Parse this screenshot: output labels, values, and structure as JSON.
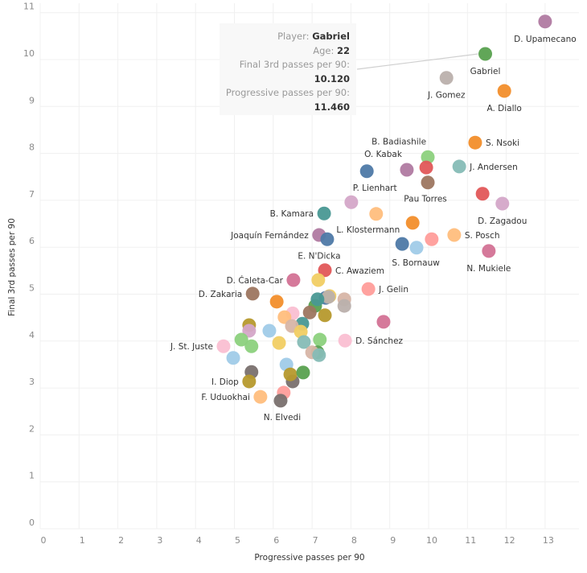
{
  "chart_data": {
    "type": "scatter",
    "title": "",
    "xlabel": "Progressive passes per 90",
    "ylabel": "Final 3rd passes per 90",
    "xlim": [
      0,
      13.9
    ],
    "ylim": [
      0,
      11.2
    ],
    "xticks": [
      0,
      1,
      2,
      3,
      4,
      5,
      6,
      7,
      8,
      9,
      10,
      11,
      12,
      13
    ],
    "yticks": [
      0,
      1,
      2,
      3,
      4,
      5,
      6,
      7,
      8,
      9,
      10,
      11
    ],
    "grid": true,
    "points": [
      {
        "name": "D. Upamecano",
        "x": 13.0,
        "y": 10.81,
        "color": "#b07aa1",
        "label": "D. Upamecano",
        "label_pos": "below"
      },
      {
        "name": "Gabriel",
        "x": 11.46,
        "y": 10.12,
        "color": "#59a14f",
        "label": "Gabriel",
        "label_pos": "below"
      },
      {
        "name": "J. Gomez",
        "x": 10.46,
        "y": 9.61,
        "color": "#bab0ac",
        "label": "J. Gomez",
        "label_pos": "below"
      },
      {
        "name": "A. Diallo",
        "x": 11.95,
        "y": 9.33,
        "color": "#f28e2b",
        "label": "A. Diallo",
        "label_pos": "below"
      },
      {
        "name": "S. Nsoki",
        "x": 11.2,
        "y": 8.23,
        "color": "#f28e2b",
        "label": "S. Nsoki",
        "label_pos": "right"
      },
      {
        "name": "B. Badiashile",
        "x": 9.98,
        "y": 7.92,
        "color": "#8cd17d",
        "label": "B. Badiashile",
        "label_pos": "above-left"
      },
      {
        "name": "",
        "x": 9.94,
        "y": 7.7,
        "color": "#e15759",
        "label": "",
        "label_pos": ""
      },
      {
        "name": "O. Kabak",
        "x": 9.44,
        "y": 7.65,
        "color": "#b07aa1",
        "label": "O. Kabak",
        "label_pos": "above-left"
      },
      {
        "name": "P. Lienhart",
        "x": 8.41,
        "y": 7.62,
        "color": "#4e79a7",
        "label": "P. Lienhart",
        "label_pos": "below-right"
      },
      {
        "name": "J. Andersen",
        "x": 10.79,
        "y": 7.72,
        "color": "#86bcb6",
        "label": "J. Andersen",
        "label_pos": "right"
      },
      {
        "name": "Pau Torres",
        "x": 9.98,
        "y": 7.38,
        "color": "#9d7660",
        "label": "Pau Torres",
        "label_pos": "below"
      },
      {
        "name": "",
        "x": 11.39,
        "y": 7.14,
        "color": "#e15759",
        "label": "",
        "label_pos": ""
      },
      {
        "name": "D. Zagadou",
        "x": 11.9,
        "y": 6.93,
        "color": "#d4a6c8",
        "label": "D. Zagadou",
        "label_pos": "below"
      },
      {
        "name": "",
        "x": 8.01,
        "y": 6.96,
        "color": "#d4a6c8",
        "label": "",
        "label_pos": ""
      },
      {
        "name": "L. Klostermann",
        "x": 8.65,
        "y": 6.71,
        "color": "#ffbe7d",
        "label": "L. Klostermann",
        "label_pos": "below"
      },
      {
        "name": "B. Kamara",
        "x": 7.31,
        "y": 6.72,
        "color": "#499894",
        "label": "B. Kamara",
        "label_pos": "left"
      },
      {
        "name": "",
        "x": 9.59,
        "y": 6.52,
        "color": "#f28e2b",
        "label": "",
        "label_pos": ""
      },
      {
        "name": "Joaquín Fernández",
        "x": 7.18,
        "y": 6.26,
        "color": "#b07aa1",
        "label": "Joaquín Fernández",
        "label_pos": "left"
      },
      {
        "name": "E. N'Dicka",
        "x": 7.39,
        "y": 6.17,
        "color": "#4e79a7",
        "label": "E. N'Dicka",
        "label_pos": "below"
      },
      {
        "name": "S. Bornauw",
        "x": 9.32,
        "y": 6.07,
        "color": "#4e79a7",
        "label": "S. Bornauw",
        "label_pos": "below-right"
      },
      {
        "name": "",
        "x": 9.69,
        "y": 5.99,
        "color": "#a0cbe8",
        "label": "",
        "label_pos": ""
      },
      {
        "name": "",
        "x": 10.08,
        "y": 6.17,
        "color": "#ff9d9a",
        "label": "",
        "label_pos": ""
      },
      {
        "name": "S. Posch",
        "x": 10.66,
        "y": 6.26,
        "color": "#ffbe7d",
        "label": "S. Posch",
        "label_pos": "right"
      },
      {
        "name": "N. Mukiele",
        "x": 11.55,
        "y": 5.92,
        "color": "#d37295",
        "label": "N. Mukiele",
        "label_pos": "below"
      },
      {
        "name": "C. Awaziem",
        "x": 7.33,
        "y": 5.51,
        "color": "#e15759",
        "label": "C. Awaziem",
        "label_pos": "right"
      },
      {
        "name": "",
        "x": 7.16,
        "y": 5.3,
        "color": "#f1ce63",
        "label": "",
        "label_pos": ""
      },
      {
        "name": "D. Ćaleta-Car",
        "x": 6.52,
        "y": 5.3,
        "color": "#d37295",
        "label": "D. Ćaleta-Car",
        "label_pos": "left"
      },
      {
        "name": "D. Zakaria",
        "x": 5.47,
        "y": 5.01,
        "color": "#9d7660",
        "label": "D. Zakaria",
        "label_pos": "left"
      },
      {
        "name": "J. Gelin",
        "x": 8.45,
        "y": 5.11,
        "color": "#ff9d9a",
        "label": "J. Gelin",
        "label_pos": "right"
      },
      {
        "name": "",
        "x": 6.09,
        "y": 4.84,
        "color": "#f28e2b",
        "label": "",
        "label_pos": ""
      },
      {
        "name": "",
        "x": 7.35,
        "y": 4.92,
        "color": "#4e79a7",
        "label": "",
        "label_pos": ""
      },
      {
        "name": "",
        "x": 7.45,
        "y": 4.96,
        "color": "#f1ce63",
        "label": "",
        "label_pos": ""
      },
      {
        "name": "",
        "x": 7.42,
        "y": 4.94,
        "color": "#bab0ac",
        "label": "",
        "label_pos": ""
      },
      {
        "name": "",
        "x": 7.83,
        "y": 4.89,
        "color": "#d7b5a6",
        "label": "",
        "label_pos": ""
      },
      {
        "name": "",
        "x": 7.83,
        "y": 4.75,
        "color": "#bab0ac",
        "label": "",
        "label_pos": ""
      },
      {
        "name": "",
        "x": 7.08,
        "y": 4.75,
        "color": "#59a14f",
        "label": "",
        "label_pos": ""
      },
      {
        "name": "",
        "x": 7.14,
        "y": 4.89,
        "color": "#499894",
        "label": "",
        "label_pos": ""
      },
      {
        "name": "",
        "x": 6.94,
        "y": 4.61,
        "color": "#9d7660",
        "label": "",
        "label_pos": ""
      },
      {
        "name": "",
        "x": 7.33,
        "y": 4.55,
        "color": "#b6992d",
        "label": "",
        "label_pos": ""
      },
      {
        "name": "",
        "x": 6.5,
        "y": 4.59,
        "color": "#fabfd2",
        "label": "",
        "label_pos": ""
      },
      {
        "name": "",
        "x": 6.29,
        "y": 4.51,
        "color": "#ffbe7d",
        "label": "",
        "label_pos": ""
      },
      {
        "name": "",
        "x": 8.84,
        "y": 4.41,
        "color": "#d37295",
        "label": "",
        "label_pos": ""
      },
      {
        "name": "",
        "x": 5.38,
        "y": 4.34,
        "color": "#b6992d",
        "label": "",
        "label_pos": ""
      },
      {
        "name": "",
        "x": 5.38,
        "y": 4.22,
        "color": "#d4a6c8",
        "label": "",
        "label_pos": ""
      },
      {
        "name": "",
        "x": 5.9,
        "y": 4.22,
        "color": "#a0cbe8",
        "label": "",
        "label_pos": ""
      },
      {
        "name": "",
        "x": 6.75,
        "y": 4.37,
        "color": "#499894",
        "label": "",
        "label_pos": ""
      },
      {
        "name": "",
        "x": 6.48,
        "y": 4.32,
        "color": "#d7b5a6",
        "label": "",
        "label_pos": ""
      },
      {
        "name": "",
        "x": 6.71,
        "y": 4.2,
        "color": "#f1ce63",
        "label": "",
        "label_pos": ""
      },
      {
        "name": "J. St. Juste",
        "x": 4.72,
        "y": 3.89,
        "color": "#fabfd2",
        "label": "J. St. Juste",
        "label_pos": "left"
      },
      {
        "name": "",
        "x": 5.18,
        "y": 4.03,
        "color": "#8cd17d",
        "label": "",
        "label_pos": ""
      },
      {
        "name": "",
        "x": 5.44,
        "y": 3.89,
        "color": "#8cd17d",
        "label": "",
        "label_pos": ""
      },
      {
        "name": "",
        "x": 6.15,
        "y": 3.96,
        "color": "#f1ce63",
        "label": "",
        "label_pos": ""
      },
      {
        "name": "",
        "x": 6.79,
        "y": 3.98,
        "color": "#86bcb6",
        "label": "",
        "label_pos": ""
      },
      {
        "name": "",
        "x": 7.2,
        "y": 4.03,
        "color": "#8cd17d",
        "label": "",
        "label_pos": ""
      },
      {
        "name": "D. Sánchez",
        "x": 7.85,
        "y": 4.01,
        "color": "#fabfd2",
        "label": "D. Sánchez",
        "label_pos": "right"
      },
      {
        "name": "",
        "x": 7.14,
        "y": 3.76,
        "color": "#59a14f",
        "label": "",
        "label_pos": ""
      },
      {
        "name": "",
        "x": 7.0,
        "y": 3.76,
        "color": "#d7b5a6",
        "label": "",
        "label_pos": ""
      },
      {
        "name": "",
        "x": 7.18,
        "y": 3.7,
        "color": "#86bcb6",
        "label": "",
        "label_pos": ""
      },
      {
        "name": "",
        "x": 4.97,
        "y": 3.64,
        "color": "#a0cbe8",
        "label": "",
        "label_pos": ""
      },
      {
        "name": "",
        "x": 6.34,
        "y": 3.5,
        "color": "#a0cbe8",
        "label": "",
        "label_pos": ""
      },
      {
        "name": "",
        "x": 5.44,
        "y": 3.34,
        "color": "#79706e",
        "label": "",
        "label_pos": ""
      },
      {
        "name": "",
        "x": 6.5,
        "y": 3.14,
        "color": "#79706e",
        "label": "",
        "label_pos": ""
      },
      {
        "name": "",
        "x": 6.44,
        "y": 3.29,
        "color": "#b6992d",
        "label": "",
        "label_pos": ""
      },
      {
        "name": "",
        "x": 6.77,
        "y": 3.33,
        "color": "#59a14f",
        "label": "",
        "label_pos": ""
      },
      {
        "name": "I. Diop",
        "x": 5.38,
        "y": 3.14,
        "color": "#b6992d",
        "label": "I. Diop",
        "label_pos": "left"
      },
      {
        "name": "F. Uduokhai",
        "x": 5.67,
        "y": 2.81,
        "color": "#ffbe7d",
        "label": "F. Uduokhai",
        "label_pos": "left"
      },
      {
        "name": "",
        "x": 6.27,
        "y": 2.9,
        "color": "#ff9d9a",
        "label": "",
        "label_pos": ""
      },
      {
        "name": "N. Elvedi",
        "x": 6.19,
        "y": 2.73,
        "color": "#79706e",
        "label": "N. Elvedi",
        "label_pos": "below"
      }
    ],
    "tooltip": {
      "target": "Gabriel",
      "rows": [
        {
          "label": "Player:",
          "value": "Gabriel",
          "inline": true
        },
        {
          "label": "Age:",
          "value": "22",
          "inline": true
        },
        {
          "label": "Final 3rd passes per 90:",
          "value": "10.120",
          "inline": false
        },
        {
          "label": "Progressive passes per 90:",
          "value": "11.460",
          "inline": false
        }
      ]
    }
  }
}
